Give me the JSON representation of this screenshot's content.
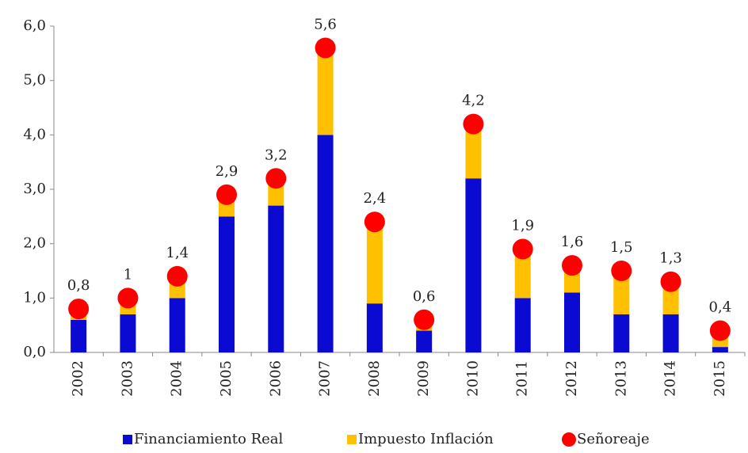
{
  "chart_data": {
    "type": "bar",
    "stacked": true,
    "categories": [
      "2002",
      "2003",
      "2004",
      "2005",
      "2006",
      "2007",
      "2008",
      "2009",
      "2010",
      "2011",
      "2012",
      "2013",
      "2014",
      "2015"
    ],
    "series": [
      {
        "name": "Financiamiento Real",
        "type": "bar",
        "color": "#0a0ad2",
        "values": [
          0.6,
          0.7,
          1.0,
          2.5,
          2.7,
          4.0,
          0.9,
          0.4,
          3.2,
          1.0,
          1.1,
          0.7,
          0.7,
          0.1
        ]
      },
      {
        "name": "Impuesto Inflación",
        "type": "bar",
        "color": "#ffc000",
        "values": [
          0.2,
          0.3,
          0.4,
          0.4,
          0.5,
          1.6,
          1.5,
          0.2,
          1.0,
          0.9,
          0.5,
          0.8,
          0.6,
          0.3
        ]
      },
      {
        "name": "Señoreaje",
        "type": "scatter",
        "color": "#ff0000",
        "values": [
          0.8,
          1,
          1.4,
          2.9,
          3.2,
          5.6,
          2.4,
          0.6,
          4.2,
          1.9,
          1.6,
          1.5,
          1.3,
          0.4
        ],
        "value_labels": [
          "0,8",
          "1",
          "1,4",
          "2,9",
          "3,2",
          "5,6",
          "2,4",
          "0,6",
          "4,2",
          "1,9",
          "1,6",
          "1,5",
          "1,3",
          "0,4"
        ]
      }
    ],
    "ylim": [
      0,
      6
    ],
    "yticks": [
      {
        "value": 0,
        "label": "0,0"
      },
      {
        "value": 1,
        "label": "1,0"
      },
      {
        "value": 2,
        "label": "2,0"
      },
      {
        "value": 3,
        "label": "3,0"
      },
      {
        "value": 4,
        "label": "4,0"
      },
      {
        "value": 5,
        "label": "5,0"
      },
      {
        "value": 6,
        "label": "6,0"
      }
    ],
    "grid": false,
    "legend": "bottom"
  }
}
